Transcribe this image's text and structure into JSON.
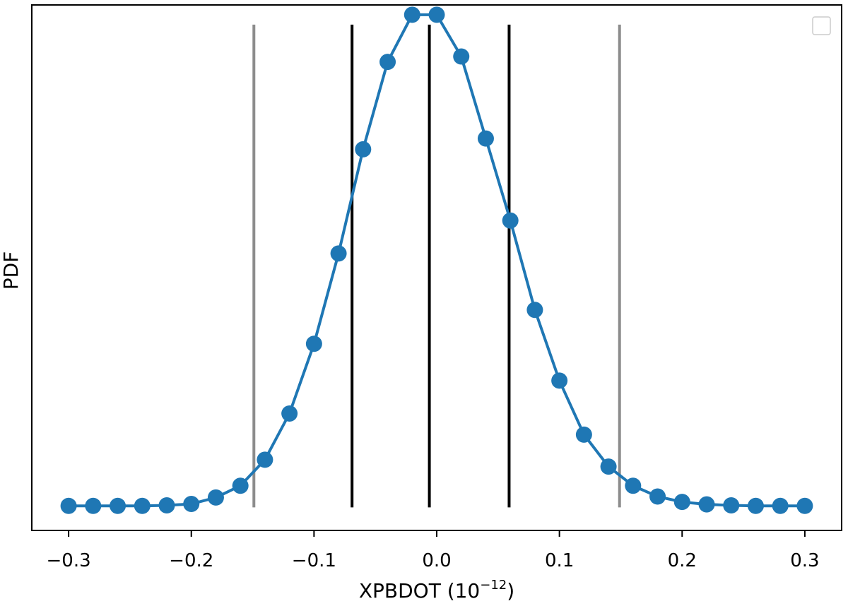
{
  "chart_data": {
    "type": "line",
    "xlabel": "XPBDOT (10",
    "xlabel_exponent": "−12",
    "xlabel_suffix": ")",
    "ylabel": "PDF",
    "xlim": [
      -0.33,
      0.33
    ],
    "ylim": [
      -0.05,
      1.02
    ],
    "xticks": [
      -0.3,
      -0.2,
      -0.1,
      0.0,
      0.1,
      0.2,
      0.3
    ],
    "xtick_labels": [
      "−0.3",
      "−0.2",
      "−0.1",
      "0.0",
      "0.1",
      "0.2",
      "0.3"
    ],
    "yticks_visible": false,
    "legend": {
      "placement": "upper-right",
      "entries": []
    },
    "series": [
      {
        "color": "#1f77b4",
        "marker": "circle",
        "x": [
          -0.3,
          -0.28,
          -0.26,
          -0.24,
          -0.22,
          -0.2,
          -0.18,
          -0.16,
          -0.14,
          -0.12,
          -0.1,
          -0.08,
          -0.06,
          -0.04,
          -0.02,
          0.0,
          0.02,
          0.04,
          0.06,
          0.08,
          0.1,
          0.12,
          0.14,
          0.16,
          0.18,
          0.2,
          0.22,
          0.24,
          0.26,
          0.28,
          0.3
        ],
        "y": [
          0.0,
          0.0,
          0.0,
          0.0,
          0.001,
          0.004,
          0.017,
          0.041,
          0.094,
          0.188,
          0.33,
          0.514,
          0.726,
          0.904,
          1.0,
          1.0,
          0.915,
          0.748,
          0.581,
          0.399,
          0.255,
          0.145,
          0.08,
          0.041,
          0.019,
          0.008,
          0.003,
          0.001,
          0.0,
          0.0,
          0.0
        ]
      }
    ],
    "vlines": [
      {
        "x": -0.149,
        "color": "#8c8c8c"
      },
      {
        "x": -0.069,
        "color": "#000000"
      },
      {
        "x": -0.006,
        "color": "#000000"
      },
      {
        "x": 0.059,
        "color": "#000000"
      },
      {
        "x": 0.149,
        "color": "#8c8c8c"
      }
    ]
  }
}
